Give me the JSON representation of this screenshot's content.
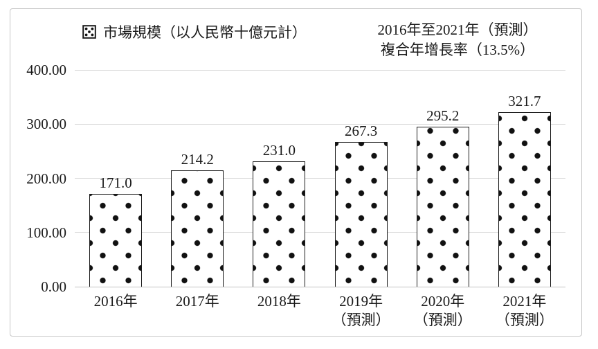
{
  "chart_data": {
    "type": "bar",
    "legend": "市場規模（以人民幣十億元計）",
    "annotation": {
      "line1": "2016年至2021年（預測）",
      "line2": "複合年增長率（13.5%）"
    },
    "categories": [
      "2016年",
      "2017年",
      "2018年",
      "2019年",
      "2020年",
      "2021年"
    ],
    "category_notes": [
      "",
      "",
      "",
      "（預測）",
      "（預測）",
      "（預測）"
    ],
    "values": [
      171.0,
      214.2,
      231.0,
      267.3,
      295.2,
      321.7
    ],
    "value_labels": [
      "171.0",
      "214.2",
      "231.0",
      "267.3",
      "295.2",
      "321.7"
    ],
    "y_ticks": [
      "400.00",
      "300.00",
      "200.00",
      "100.00",
      "0.00"
    ],
    "ylim": [
      0,
      400
    ],
    "grid": true,
    "legend_position": "top-left",
    "bar_pattern": "staggered-black-dots",
    "colors": {
      "bar_fill": "#ffffff",
      "bar_border": "#1a1a1a",
      "dot": "#111111",
      "gridline": "#d9d9d9",
      "axis_line": "#c2c2c2",
      "text": "#1a1a1a",
      "frame_border": "#c6c6c6"
    }
  }
}
